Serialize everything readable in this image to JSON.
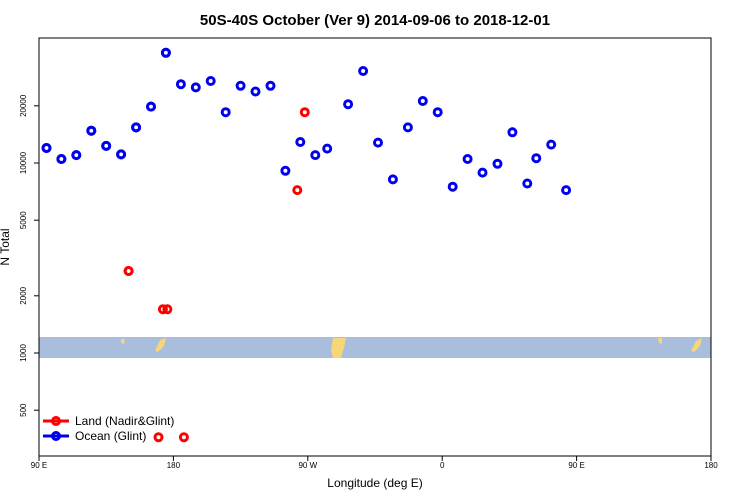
{
  "chart_data": {
    "type": "scatter",
    "title": "50S-40S October (Ver 9)   2014-09-06 to 2018-12-01",
    "xlabel": "Longitude (deg E)",
    "ylabel": "N Total",
    "y_scale": "log",
    "x_range_label": "90 E to 180 (wrapping through 180, 90 W, 0, 90 E)",
    "x_ticks": [
      "90 E",
      "180",
      "90 W",
      "0",
      "90 E",
      "180"
    ],
    "y_ticks": [
      "500",
      "1000",
      "2000",
      "5000",
      "10000",
      "20000"
    ],
    "legend_position": "bottom-left",
    "colors": {
      "land": "#ff0000",
      "ocean": "#0000ee",
      "map_ocean": "#a9bddd",
      "map_land": "#f5d77a"
    },
    "series": [
      {
        "name": "Land (Nadir&Glint)",
        "color": "#ff0000",
        "points": [
          {
            "lon": 150,
            "n": 2700
          },
          {
            "lon": 176,
            "n": 1700
          },
          {
            "lon": -97,
            "n": 7200
          },
          {
            "lon": -92,
            "n": 18500
          },
          {
            "lon": -173,
            "n": 360
          },
          {
            "lon": 150,
            "n": 2700
          },
          {
            "lon": 170,
            "n": 360
          },
          {
            "lon": 173,
            "n": 1700
          }
        ]
      },
      {
        "name": "Ocean (Glint)",
        "color": "#0000ee",
        "points": [
          {
            "lon": 95,
            "n": 12000
          },
          {
            "lon": 105,
            "n": 10500
          },
          {
            "lon": 115,
            "n": 11000
          },
          {
            "lon": 125,
            "n": 14800
          },
          {
            "lon": 135,
            "n": 12300
          },
          {
            "lon": 145,
            "n": 11100
          },
          {
            "lon": 155,
            "n": 15400
          },
          {
            "lon": 165,
            "n": 19800
          },
          {
            "lon": 175,
            "n": 38000
          },
          {
            "lon": -175,
            "n": 26000
          },
          {
            "lon": -165,
            "n": 25000
          },
          {
            "lon": -155,
            "n": 27000
          },
          {
            "lon": -145,
            "n": 18500
          },
          {
            "lon": -135,
            "n": 25500
          },
          {
            "lon": -125,
            "n": 23800
          },
          {
            "lon": -115,
            "n": 25500
          },
          {
            "lon": -105,
            "n": 9100
          },
          {
            "lon": -95,
            "n": 12900
          },
          {
            "lon": -85,
            "n": 11000
          },
          {
            "lon": -77,
            "n": 11900
          },
          {
            "lon": -63,
            "n": 20400
          },
          {
            "lon": -53,
            "n": 30500
          },
          {
            "lon": -43,
            "n": 12800
          },
          {
            "lon": -33,
            "n": 8200
          },
          {
            "lon": -23,
            "n": 15400
          },
          {
            "lon": -13,
            "n": 21200
          },
          {
            "lon": -3,
            "n": 18500
          },
          {
            "lon": 7,
            "n": 7500
          },
          {
            "lon": 17,
            "n": 10500
          },
          {
            "lon": 27,
            "n": 8900
          },
          {
            "lon": 37,
            "n": 9900
          },
          {
            "lon": 47,
            "n": 14500
          },
          {
            "lon": 57,
            "n": 7800
          },
          {
            "lon": 63,
            "n": 10600
          },
          {
            "lon": 73,
            "n": 12500
          },
          {
            "lon": 83,
            "n": 7200
          },
          {
            "lon": 95,
            "n": 12000
          },
          {
            "lon": 105,
            "n": 10500
          },
          {
            "lon": 115,
            "n": 11000
          },
          {
            "lon": 125,
            "n": 14800
          },
          {
            "lon": 135,
            "n": 12300
          },
          {
            "lon": 145,
            "n": 11100
          },
          {
            "lon": 155,
            "n": 15400
          },
          {
            "lon": 165,
            "n": 19800
          },
          {
            "lon": 175,
            "n": 38000
          }
        ]
      }
    ]
  }
}
